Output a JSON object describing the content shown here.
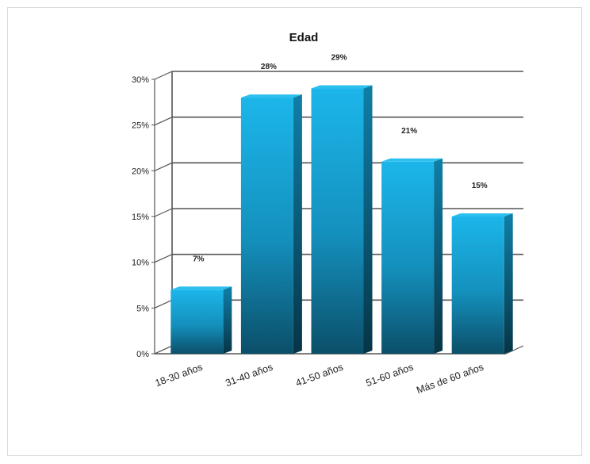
{
  "chart_data": {
    "type": "bar",
    "title": "Edad",
    "categories": [
      "18-30 años",
      "31-40 años",
      "41-50 años",
      "51-60 años",
      "Más de 60 años"
    ],
    "values": [
      7,
      28,
      29,
      21,
      15
    ],
    "value_labels": [
      "7%",
      "28%",
      "29%",
      "21%",
      "15%"
    ],
    "y_ticks": [
      "0%",
      "5%",
      "10%",
      "15%",
      "20%",
      "25%",
      "30%"
    ],
    "ylim": [
      0,
      30
    ],
    "grid": true,
    "legend": "none",
    "bar_color": "#1ba6d8"
  }
}
